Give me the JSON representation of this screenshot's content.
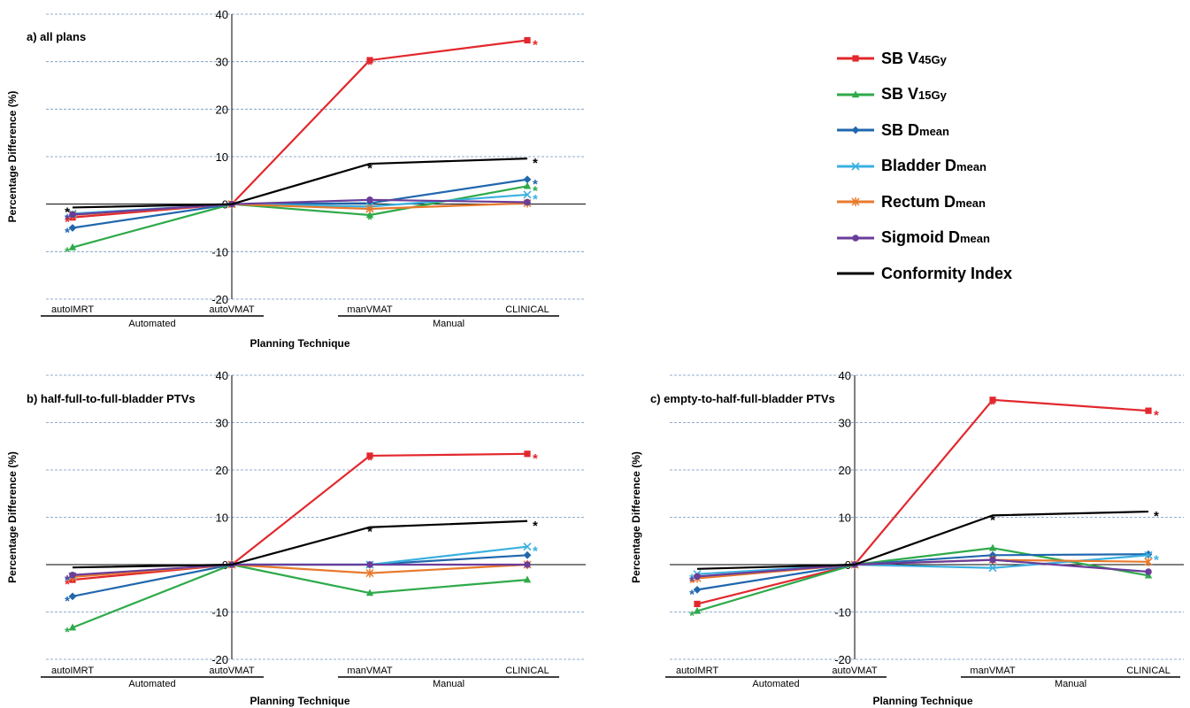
{
  "chart_data": [
    {
      "type": "line",
      "title": "a) all plans",
      "xlabel": "Planning Technique",
      "ylabel": "Percentage Difference (%)",
      "ylim": [
        -20,
        40
      ],
      "yticks": [
        -20,
        -10,
        0,
        10,
        20,
        30,
        40
      ],
      "grid": true,
      "categories": [
        "autoIMRT",
        "autoVMAT",
        "manVMAT",
        "CLINICAL"
      ],
      "groups": [
        "Automated",
        "Manual"
      ],
      "series": [
        {
          "name": "SB V45Gy",
          "values": [
            -2.8,
            0,
            30.3,
            34.5
          ],
          "stars": [
            true,
            false,
            true,
            true
          ]
        },
        {
          "name": "SB V15Gy",
          "values": [
            -9.1,
            0,
            -2.3,
            3.8
          ],
          "stars": [
            true,
            false,
            true,
            true
          ]
        },
        {
          "name": "SB Dmean",
          "values": [
            -5.0,
            0,
            0.2,
            5.2
          ],
          "stars": [
            true,
            false,
            false,
            true
          ]
        },
        {
          "name": "Bladder Dmean",
          "values": [
            -2.0,
            0,
            -0.5,
            2.0
          ],
          "stars": [
            true,
            false,
            false,
            true
          ]
        },
        {
          "name": "Rectum Dmean",
          "values": [
            -2.3,
            0,
            -1.0,
            0.2
          ],
          "stars": [
            false,
            false,
            false,
            false
          ]
        },
        {
          "name": "Sigmoid Dmean",
          "values": [
            -2.2,
            0,
            0.9,
            0.4
          ],
          "stars": [
            true,
            false,
            false,
            false
          ]
        },
        {
          "name": "Conformity Index",
          "values": [
            -0.7,
            0,
            8.5,
            9.6
          ],
          "stars": [
            true,
            false,
            true,
            true
          ]
        }
      ]
    },
    {
      "type": "line",
      "title": "b) half-full-to-full-bladder PTVs",
      "xlabel": "Planning Technique",
      "ylabel": "Percentage Difference (%)",
      "ylim": [
        -20,
        40
      ],
      "yticks": [
        -20,
        -10,
        0,
        10,
        20,
        30,
        40
      ],
      "grid": true,
      "categories": [
        "autoIMRT",
        "autoVMAT",
        "manVMAT",
        "CLINICAL"
      ],
      "groups": [
        "Automated",
        "Manual"
      ],
      "series": [
        {
          "name": "SB V45Gy",
          "values": [
            -3.2,
            0,
            23.0,
            23.4
          ],
          "stars": [
            true,
            false,
            true,
            true
          ]
        },
        {
          "name": "SB V15Gy",
          "values": [
            -13.3,
            0,
            -6.0,
            -3.2
          ],
          "stars": [
            true,
            false,
            false,
            false
          ]
        },
        {
          "name": "SB Dmean",
          "values": [
            -6.7,
            0,
            0,
            2.0
          ],
          "stars": [
            true,
            false,
            false,
            false
          ]
        },
        {
          "name": "Bladder Dmean",
          "values": [
            -2.4,
            0,
            0,
            3.8
          ],
          "stars": [
            true,
            false,
            false,
            true
          ]
        },
        {
          "name": "Rectum Dmean",
          "values": [
            -2.6,
            0,
            -1.8,
            0
          ],
          "stars": [
            false,
            false,
            false,
            false
          ]
        },
        {
          "name": "Sigmoid Dmean",
          "values": [
            -2.2,
            0,
            0,
            0
          ],
          "stars": [
            true,
            false,
            false,
            false
          ]
        },
        {
          "name": "Conformity Index",
          "values": [
            -0.6,
            0,
            7.9,
            9.2
          ],
          "stars": [
            false,
            false,
            true,
            true
          ]
        }
      ]
    },
    {
      "type": "line",
      "title": "c) empty-to-half-full-bladder PTVs",
      "xlabel": "Planning Technique",
      "ylabel": "Percentage Difference (%)",
      "ylim": [
        -20,
        40
      ],
      "yticks": [
        -20,
        -10,
        0,
        10,
        20,
        30,
        40
      ],
      "grid": true,
      "categories": [
        "autoIMRT",
        "autoVMAT",
        "manVMAT",
        "CLINICAL"
      ],
      "groups": [
        "Automated",
        "Manual"
      ],
      "series": [
        {
          "name": "SB V45Gy",
          "values": [
            -8.3,
            0,
            34.8,
            32.5
          ],
          "stars": [
            false,
            false,
            true,
            true
          ]
        },
        {
          "name": "SB V15Gy",
          "values": [
            -9.8,
            0,
            3.5,
            -2.3
          ],
          "stars": [
            true,
            false,
            false,
            false
          ]
        },
        {
          "name": "SB Dmean",
          "values": [
            -5.3,
            0,
            2.0,
            2.2
          ],
          "stars": [
            true,
            false,
            false,
            false
          ]
        },
        {
          "name": "Bladder Dmean",
          "values": [
            -2.0,
            0,
            -0.7,
            2.0
          ],
          "stars": [
            true,
            false,
            false,
            true
          ]
        },
        {
          "name": "Rectum Dmean",
          "values": [
            -2.9,
            0,
            1.0,
            0.6
          ],
          "stars": [
            true,
            false,
            false,
            false
          ]
        },
        {
          "name": "Sigmoid Dmean",
          "values": [
            -2.5,
            0,
            1.0,
            -1.5
          ],
          "stars": [
            true,
            false,
            false,
            false
          ]
        },
        {
          "name": "Conformity Index",
          "values": [
            -0.9,
            0,
            10.4,
            11.2
          ],
          "stars": [
            false,
            false,
            true,
            true
          ]
        }
      ]
    }
  ],
  "legend": {
    "entries": [
      {
        "main": "SB V",
        "sub": "45Gy",
        "color": "#e2282d",
        "marker": "square"
      },
      {
        "main": "SB V",
        "sub": "15Gy",
        "color": "#2eaa4a",
        "marker": "triangle"
      },
      {
        "main": "SB D",
        "sub": "mean",
        "color": "#2167ad",
        "marker": "diamond"
      },
      {
        "main": "Bladder D",
        "sub": "mean",
        "color": "#3bb0e0",
        "marker": "x"
      },
      {
        "main": "Rectum D",
        "sub": "mean",
        "color": "#e87a2c",
        "marker": "asterisk"
      },
      {
        "main": "Sigmoid D",
        "sub": "mean",
        "color": "#6a3d9a",
        "marker": "circle"
      },
      {
        "main": "Conformity Index",
        "sub": "",
        "color": "#000000",
        "marker": "none"
      }
    ]
  }
}
